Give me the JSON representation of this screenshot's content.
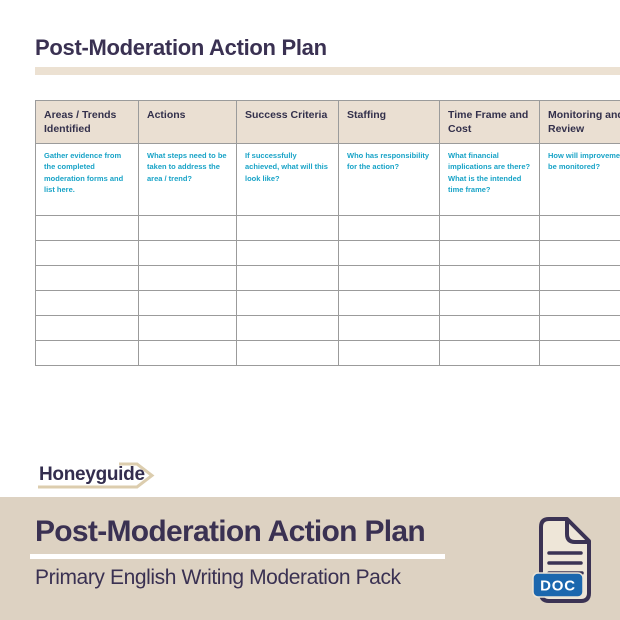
{
  "page": {
    "title": "Post-Moderation Action Plan"
  },
  "table": {
    "columns": [
      {
        "header": "Areas / Trends Identified",
        "hint": "Gather evidence from the completed moderation forms and list here."
      },
      {
        "header": "Actions",
        "hint": "What steps need to be taken to address the area / trend?"
      },
      {
        "header": "Success Criteria",
        "hint": "If successfully achieved, what will this look like?"
      },
      {
        "header": "Staffing",
        "hint": "Who has responsibility for the action?"
      },
      {
        "header": "Time Frame and Cost",
        "hint": "What financial implications are there? What is the intended time frame?"
      },
      {
        "header": "Monitoring and Review",
        "hint": "How will improvements be monitored?"
      }
    ],
    "empty_row_count": 6
  },
  "footer": {
    "logo_text": "Honeyguide"
  },
  "banner": {
    "title": "Post-Moderation Action Plan",
    "subtitle": "Primary English Writing Moderation Pack",
    "file_badge": "DOC"
  },
  "colors": {
    "navy_text": "#3a3152",
    "beige_accent": "#ece1d2",
    "table_header_bg": "#eadfd2",
    "hint_teal": "#18a3c7",
    "banner_bg": "#ddd2c2",
    "doc_badge_blue": "#1b67ae"
  }
}
